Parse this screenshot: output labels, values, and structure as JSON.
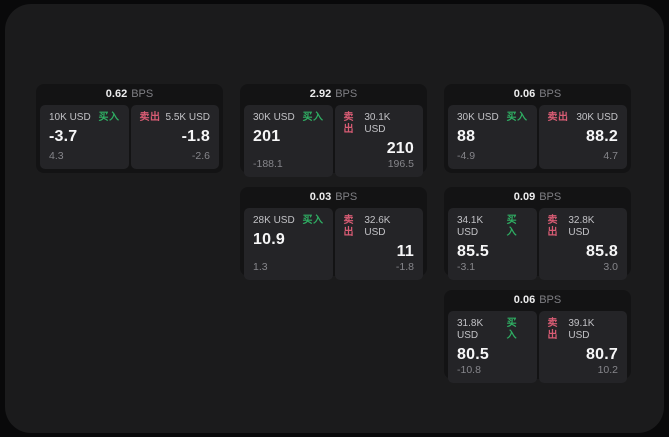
{
  "labels": {
    "buy": "买入",
    "sell": "卖出",
    "bps": "BPS"
  },
  "colors": {
    "background": "#09090a",
    "panel": "#1b1b1c",
    "card": "#131314",
    "inner_panel": "#242427",
    "buy_green": "#2fae63",
    "sell_pink": "#d85c74",
    "value_text": "#f6f6f7",
    "muted_text": "#86868b"
  },
  "cards": [
    {
      "bps": "0.62",
      "buy": {
        "amount": "10K USD",
        "value": "-3.7",
        "sub": "4.3"
      },
      "sell": {
        "amount": "5.5K USD",
        "value": "-1.8",
        "sub": "-2.6"
      }
    },
    {
      "bps": "2.92",
      "buy": {
        "amount": "30K USD",
        "value": "201",
        "sub": "-188.1"
      },
      "sell": {
        "amount": "30.1K USD",
        "value": "210",
        "sub": "196.5"
      }
    },
    {
      "bps": "0.06",
      "buy": {
        "amount": "30K USD",
        "value": "88",
        "sub": "-4.9"
      },
      "sell": {
        "amount": "30K USD",
        "value": "88.2",
        "sub": "4.7"
      }
    },
    {
      "bps": "0.03",
      "buy": {
        "amount": "28K USD",
        "value": "10.9",
        "sub": "1.3"
      },
      "sell": {
        "amount": "32.6K USD",
        "value": "11",
        "sub": "-1.8"
      }
    },
    {
      "bps": "0.09",
      "buy": {
        "amount": "34.1K USD",
        "value": "85.5",
        "sub": "-3.1"
      },
      "sell": {
        "amount": "32.8K USD",
        "value": "85.8",
        "sub": "3.0"
      }
    },
    {
      "bps": "0.06",
      "buy": {
        "amount": "31.8K USD",
        "value": "80.5",
        "sub": "-10.8"
      },
      "sell": {
        "amount": "39.1K USD",
        "value": "80.7",
        "sub": "10.2"
      }
    }
  ]
}
